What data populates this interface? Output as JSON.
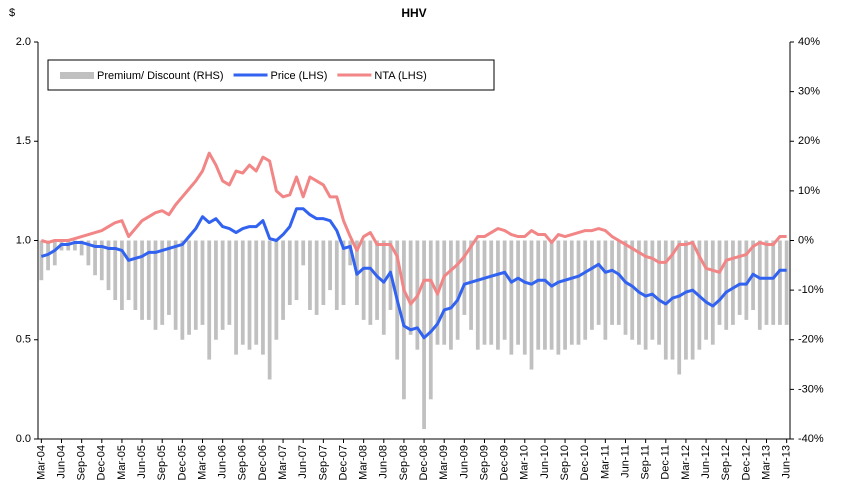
{
  "chart_data": {
    "type": "combo",
    "title": "HHV",
    "ylabel": "$",
    "categories": [
      "Mar-04",
      null,
      null,
      "Jun-04",
      null,
      null,
      "Sep-04",
      null,
      null,
      "Dec-04",
      null,
      null,
      "Mar-05",
      null,
      null,
      "Jun-05",
      null,
      null,
      "Sep-05",
      null,
      null,
      "Dec-05",
      null,
      null,
      "Mar-06",
      null,
      null,
      "Jun-06",
      null,
      null,
      "Sep-06",
      null,
      null,
      "Dec-06",
      null,
      null,
      "Mar-07",
      null,
      null,
      "Jun-07",
      null,
      null,
      "Sep-07",
      null,
      null,
      "Dec-07",
      null,
      null,
      "Mar-08",
      null,
      null,
      "Jun-08",
      null,
      null,
      "Sep-08",
      null,
      null,
      "Dec-08",
      null,
      null,
      "Mar-09",
      null,
      null,
      "Jun-09",
      null,
      null,
      "Sep-09",
      null,
      null,
      "Dec-09",
      null,
      null,
      "Mar-10",
      null,
      null,
      "Jun-10",
      null,
      null,
      "Sep-10",
      null,
      null,
      "Dec-10",
      null,
      null,
      "Mar-11",
      null,
      null,
      "Jun-11",
      null,
      null,
      "Sep-11",
      null,
      null,
      "Dec-11",
      null,
      null,
      "Mar-12",
      null,
      null,
      "Jun-12",
      null,
      null,
      "Sep-12",
      null,
      null,
      "Dec-12",
      null,
      null,
      "Mar-13",
      null,
      null,
      "Jun-13"
    ],
    "series": [
      {
        "name": "Premium/ Discount (RHS)",
        "type": "bar",
        "axis": "y2",
        "color": "#c0c0c0",
        "values": [
          -8,
          -6,
          -5,
          -2,
          -2,
          -2,
          -3,
          -5,
          -7,
          -8,
          -10,
          -12,
          -14,
          -12,
          -14,
          -16,
          -16,
          -18,
          -17,
          -15,
          -18,
          -20,
          -19,
          -18,
          -17,
          -24,
          -20,
          -18,
          -17,
          -23,
          -21,
          -22,
          -21,
          -23,
          -28,
          -20,
          -16,
          -13,
          -12,
          -5,
          -14,
          -15,
          -13,
          -10,
          -14,
          -13,
          -5,
          -13,
          -16,
          -17,
          -16,
          -19,
          -14,
          -24,
          -32,
          -19,
          -22,
          -38,
          -32,
          -21,
          -21,
          -22,
          -20,
          -15,
          -18,
          -22,
          -21,
          -21,
          -22,
          -20,
          -23,
          -21,
          -23,
          -26,
          -22,
          -22,
          -22,
          -23,
          -22,
          -21,
          -21,
          -20,
          -18,
          -17,
          -20,
          -17,
          -17,
          -19,
          -20,
          -21,
          -22,
          -20,
          -21,
          -24,
          -24,
          -27,
          -24,
          -24,
          -22,
          -20,
          -21,
          -17,
          -18,
          -17,
          -15,
          -16,
          -14,
          -18,
          -17,
          -17,
          -17,
          -17
        ]
      },
      {
        "name": "Price (LHS)",
        "type": "line",
        "color": "#3162f0",
        "values": [
          0.92,
          0.93,
          0.95,
          0.98,
          0.98,
          0.99,
          0.99,
          0.98,
          0.97,
          0.97,
          0.96,
          0.96,
          0.95,
          0.9,
          0.91,
          0.92,
          0.94,
          0.94,
          0.95,
          0.96,
          0.97,
          0.98,
          1.02,
          1.06,
          1.12,
          1.09,
          1.11,
          1.07,
          1.06,
          1.04,
          1.06,
          1.07,
          1.07,
          1.1,
          1.01,
          1.0,
          1.03,
          1.07,
          1.16,
          1.16,
          1.13,
          1.11,
          1.11,
          1.1,
          1.05,
          0.96,
          0.97,
          0.83,
          0.86,
          0.86,
          0.82,
          0.79,
          0.84,
          0.7,
          0.57,
          0.55,
          0.56,
          0.51,
          0.54,
          0.58,
          0.65,
          0.66,
          0.7,
          0.78,
          0.79,
          0.8,
          0.81,
          0.82,
          0.83,
          0.84,
          0.79,
          0.81,
          0.79,
          0.78,
          0.8,
          0.8,
          0.77,
          0.79,
          0.8,
          0.81,
          0.82,
          0.84,
          0.86,
          0.88,
          0.84,
          0.85,
          0.83,
          0.79,
          0.77,
          0.74,
          0.72,
          0.73,
          0.7,
          0.68,
          0.71,
          0.72,
          0.74,
          0.75,
          0.72,
          0.69,
          0.67,
          0.7,
          0.74,
          0.76,
          0.78,
          0.78,
          0.83,
          0.81,
          0.81,
          0.81,
          0.85,
          0.85
        ]
      },
      {
        "name": "NTA (LHS)",
        "type": "line",
        "color": "#f28585",
        "values": [
          1.0,
          0.99,
          1.0,
          1.0,
          1.0,
          1.01,
          1.02,
          1.03,
          1.04,
          1.05,
          1.07,
          1.09,
          1.1,
          1.02,
          1.06,
          1.1,
          1.12,
          1.14,
          1.15,
          1.13,
          1.18,
          1.22,
          1.26,
          1.3,
          1.35,
          1.44,
          1.38,
          1.3,
          1.28,
          1.35,
          1.34,
          1.38,
          1.35,
          1.42,
          1.4,
          1.25,
          1.22,
          1.23,
          1.32,
          1.22,
          1.32,
          1.3,
          1.28,
          1.22,
          1.22,
          1.1,
          1.02,
          0.95,
          1.02,
          1.04,
          0.98,
          0.98,
          0.98,
          0.92,
          0.75,
          0.68,
          0.72,
          0.8,
          0.8,
          0.73,
          0.82,
          0.85,
          0.88,
          0.92,
          0.97,
          1.02,
          1.02,
          1.04,
          1.06,
          1.05,
          1.03,
          1.02,
          1.02,
          1.05,
          1.03,
          1.03,
          0.99,
          1.03,
          1.02,
          1.03,
          1.04,
          1.05,
          1.05,
          1.06,
          1.05,
          1.02,
          1.0,
          0.98,
          0.96,
          0.94,
          0.92,
          0.91,
          0.89,
          0.89,
          0.93,
          0.98,
          0.98,
          0.99,
          0.92,
          0.86,
          0.85,
          0.84,
          0.9,
          0.91,
          0.92,
          0.93,
          0.97,
          0.99,
          0.98,
          0.98,
          1.02,
          1.02
        ]
      }
    ],
    "ylim": [
      0,
      2
    ],
    "yticks": [
      {
        "value": 0,
        "label": "0.0"
      },
      0.5,
      {
        "value": 1,
        "label": "1.0"
      },
      1.5,
      {
        "value": 2,
        "label": "2.0"
      }
    ],
    "y2lim": [
      -40,
      40
    ],
    "y2ticks": [
      {
        "value": -40,
        "label": "-40%"
      },
      {
        "value": -30,
        "label": "-30%"
      },
      {
        "value": -20,
        "label": "-20%"
      },
      {
        "value": -10,
        "label": "-10%"
      },
      {
        "value": 0,
        "label": "0%"
      },
      {
        "value": 10,
        "label": "10%"
      },
      {
        "value": 20,
        "label": "20%"
      },
      {
        "value": 30,
        "label": "30%"
      },
      {
        "value": 40,
        "label": "40%"
      }
    ],
    "legend": "top-left"
  }
}
